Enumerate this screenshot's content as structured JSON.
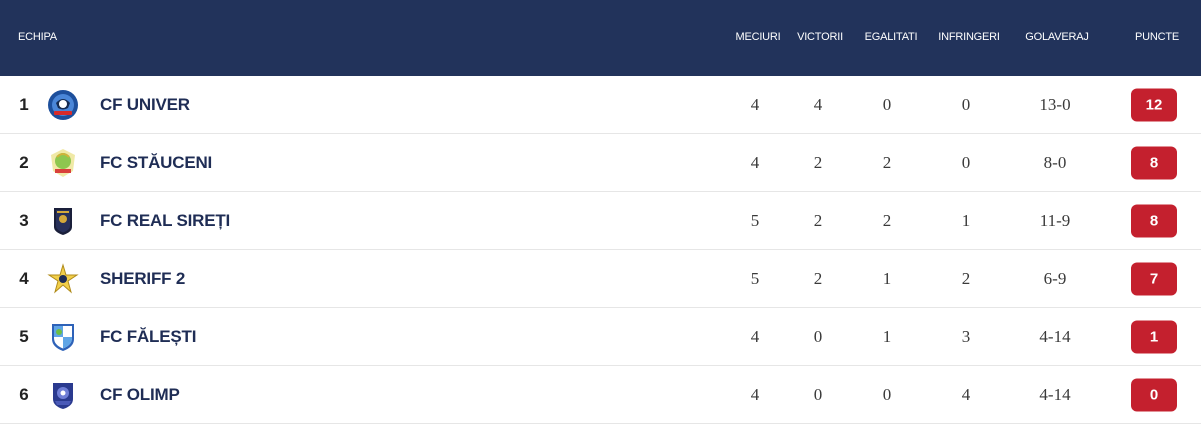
{
  "header": {
    "team": "ECHIPA",
    "played": "MECIURI",
    "wins": "VICTORII",
    "draws": "EGALITATI",
    "losses": "INFRINGERI",
    "goal_diff": "GOLAVERAJ",
    "points": "PUNCTE"
  },
  "rows": [
    {
      "pos": "1",
      "team": "CF UNIVER",
      "logo": "univer-logo-icon",
      "played": "4",
      "wins": "4",
      "draws": "0",
      "losses": "0",
      "goals": "13-0",
      "points": "12"
    },
    {
      "pos": "2",
      "team": "FC STĂUCENI",
      "logo": "stauceni-logo-icon",
      "played": "4",
      "wins": "2",
      "draws": "2",
      "losses": "0",
      "goals": "8-0",
      "points": "8"
    },
    {
      "pos": "3",
      "team": "FC REAL SIREȚI",
      "logo": "real-sireti-logo-icon",
      "played": "5",
      "wins": "2",
      "draws": "2",
      "losses": "1",
      "goals": "11-9",
      "points": "8"
    },
    {
      "pos": "4",
      "team": "SHERIFF 2",
      "logo": "sheriff-logo-icon",
      "played": "5",
      "wins": "2",
      "draws": "1",
      "losses": "2",
      "goals": "6-9",
      "points": "7"
    },
    {
      "pos": "5",
      "team": "FC FĂLEȘTI",
      "logo": "falesti-logo-icon",
      "played": "4",
      "wins": "0",
      "draws": "1",
      "losses": "3",
      "goals": "4-14",
      "points": "1"
    },
    {
      "pos": "6",
      "team": "CF OLIMP",
      "logo": "olimp-logo-icon",
      "played": "4",
      "wins": "0",
      "draws": "0",
      "losses": "4",
      "goals": "4-14",
      "points": "0"
    }
  ],
  "colors": {
    "header_bg": "#22335b",
    "points_badge": "#c4202e",
    "team_name": "#1f2d55"
  }
}
